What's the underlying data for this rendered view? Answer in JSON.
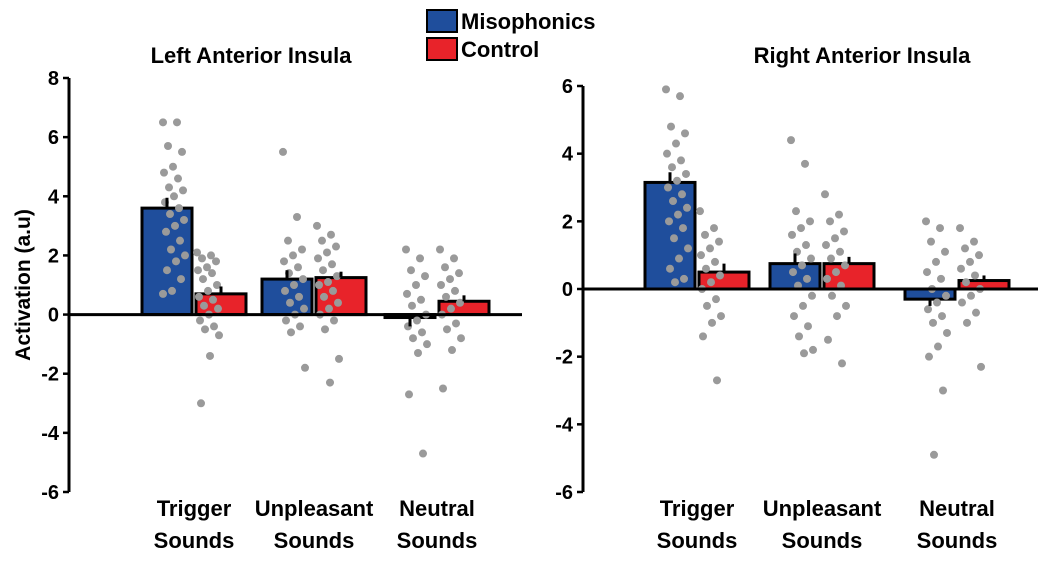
{
  "legend": {
    "items": [
      {
        "label": "Misophonics",
        "color": "#1f4e9c"
      },
      {
        "label": "Control",
        "color": "#e8232a"
      }
    ]
  },
  "colors": {
    "misophonics": "#1f4e9c",
    "control": "#e8232a",
    "points": "#9a9a9a"
  },
  "chart_data": [
    {
      "type": "bar",
      "title": "Left Anterior Insula",
      "ylabel": "Activation (a.u)",
      "ylim": [
        -6,
        8
      ],
      "yticks": [
        -6,
        -4,
        -2,
        0,
        2,
        4,
        6,
        8
      ],
      "categories": [
        [
          "Trigger",
          "Sounds"
        ],
        [
          "Unpleasant",
          "Sounds"
        ],
        [
          "Neutral",
          "Sounds"
        ]
      ],
      "series": [
        {
          "name": "Misophonics",
          "values": [
            3.6,
            1.2,
            -0.1
          ],
          "errors": [
            0.35,
            0.3,
            0.3
          ]
        },
        {
          "name": "Control",
          "values": [
            0.7,
            1.25,
            0.45
          ],
          "errors": [
            0.25,
            0.2,
            0.2
          ]
        }
      ],
      "points": [
        [
          [
            6.5,
            6.5,
            5.7,
            5.5,
            5.0,
            4.8,
            4.6,
            4.3,
            4.2,
            4.0,
            3.8,
            3.6,
            3.4,
            3.2,
            3.0,
            2.8,
            2.5,
            2.2,
            2.0,
            1.8,
            1.5,
            1.2,
            0.8,
            0.7
          ],
          [
            2.1,
            2.0,
            1.9,
            1.8,
            1.6,
            1.5,
            1.4,
            1.2,
            1.0,
            0.8,
            0.6,
            0.5,
            0.3,
            0.2,
            0.0,
            -0.2,
            -0.4,
            -0.5,
            -0.7,
            -1.4,
            -3.0
          ]
        ],
        [
          [
            5.5,
            3.3,
            2.5,
            2.2,
            2.0,
            1.8,
            1.6,
            1.4,
            1.2,
            1.0,
            0.8,
            0.6,
            0.4,
            0.2,
            0.0,
            -0.2,
            -0.4,
            -0.6,
            -1.8
          ],
          [
            3.0,
            2.7,
            2.5,
            2.3,
            2.1,
            1.9,
            1.7,
            1.5,
            1.3,
            1.1,
            1.0,
            0.8,
            0.6,
            0.4,
            0.2,
            0.0,
            -0.2,
            -0.5,
            -1.5,
            -2.3
          ]
        ],
        [
          [
            2.2,
            1.9,
            1.5,
            1.3,
            1.0,
            0.7,
            0.5,
            0.3,
            0.0,
            -0.2,
            -0.4,
            -0.6,
            -0.8,
            -1.0,
            -1.3,
            -2.7,
            -4.7
          ],
          [
            2.2,
            1.9,
            1.6,
            1.4,
            1.2,
            1.0,
            0.8,
            0.6,
            0.4,
            0.2,
            0.0,
            -0.3,
            -0.5,
            -0.8,
            -1.2,
            -2.5
          ]
        ]
      ]
    },
    {
      "type": "bar",
      "title": "Right Anterior Insula",
      "ylabel": "",
      "ylim": [
        -6,
        6
      ],
      "yticks": [
        -6,
        -4,
        -2,
        0,
        2,
        4,
        6
      ],
      "categories": [
        [
          "Trigger",
          "Sounds"
        ],
        [
          "Unpleasant",
          "Sounds"
        ],
        [
          "Neutral",
          "Sounds"
        ]
      ],
      "series": [
        {
          "name": "Misophonics",
          "values": [
            3.15,
            0.75,
            -0.3
          ],
          "errors": [
            0.3,
            0.3,
            0.2
          ]
        },
        {
          "name": "Control",
          "values": [
            0.5,
            0.75,
            0.25
          ],
          "errors": [
            0.25,
            0.2,
            0.15
          ]
        }
      ],
      "points": [
        [
          [
            5.9,
            5.7,
            4.8,
            4.6,
            4.3,
            4.0,
            3.8,
            3.6,
            3.4,
            3.2,
            3.0,
            2.8,
            2.6,
            2.4,
            2.2,
            2.0,
            1.8,
            1.5,
            1.2,
            0.9,
            0.6,
            0.3,
            0.2
          ],
          [
            2.3,
            1.8,
            1.6,
            1.4,
            1.2,
            1.0,
            0.8,
            0.6,
            0.4,
            0.2,
            0.0,
            -0.3,
            -0.5,
            -0.8,
            -1.0,
            -1.4,
            -2.7
          ]
        ],
        [
          [
            4.4,
            3.7,
            2.3,
            2.0,
            1.8,
            1.6,
            1.3,
            1.1,
            0.9,
            0.7,
            0.5,
            0.3,
            0.1,
            -0.2,
            -0.5,
            -0.8,
            -1.1,
            -1.4,
            -1.8,
            -1.9
          ],
          [
            2.8,
            2.2,
            2.0,
            1.7,
            1.5,
            1.3,
            1.1,
            0.9,
            0.7,
            0.5,
            0.3,
            0.1,
            -0.2,
            -0.5,
            -0.8,
            -1.5,
            -2.2
          ]
        ],
        [
          [
            2.0,
            1.8,
            1.4,
            1.1,
            0.8,
            0.5,
            0.3,
            0.0,
            -0.2,
            -0.4,
            -0.6,
            -0.8,
            -1.0,
            -1.3,
            -1.7,
            -2.0,
            -3.0,
            -4.9
          ],
          [
            1.8,
            1.4,
            1.2,
            1.0,
            0.8,
            0.6,
            0.4,
            0.2,
            0.0,
            -0.2,
            -0.4,
            -0.7,
            -1.0,
            -2.3
          ]
        ]
      ]
    }
  ]
}
